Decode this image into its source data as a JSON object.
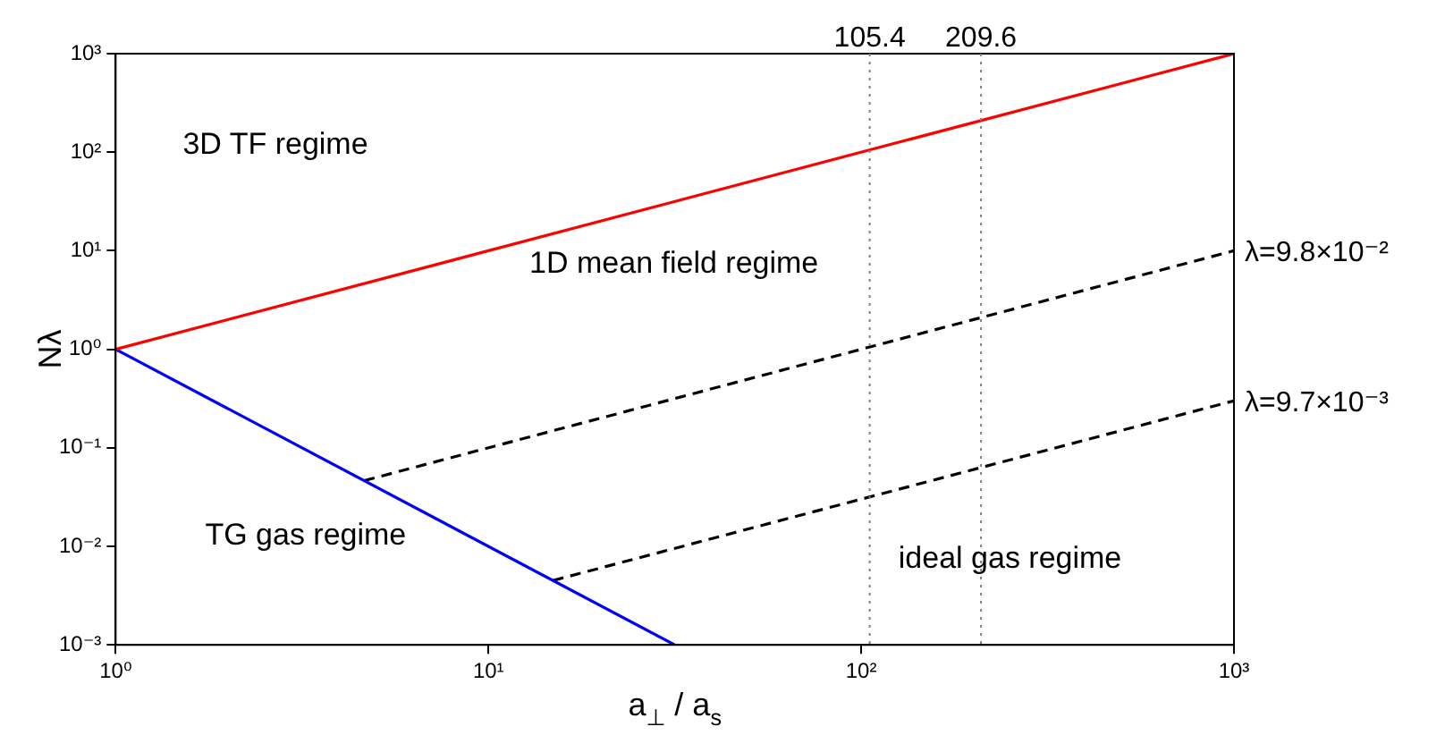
{
  "chart_data": {
    "type": "line",
    "xlabel": "a$_{⊥}$ / a$_{s}$",
    "ylabel": "Nλ",
    "log": "xy",
    "xlim": [
      1,
      1000
    ],
    "ylim": [
      0.001,
      1000
    ],
    "xticks": [
      {
        "value": 1,
        "label": "10⁰"
      },
      {
        "value": 10,
        "label": "10¹"
      },
      {
        "value": 100,
        "label": "10²"
      },
      {
        "value": 1000,
        "label": "10³"
      }
    ],
    "yticks": [
      {
        "value": 0.001,
        "label": "10⁻³"
      },
      {
        "value": 0.01,
        "label": "10⁻²"
      },
      {
        "value": 0.1,
        "label": "10⁻¹"
      },
      {
        "value": 1,
        "label": "10⁰"
      },
      {
        "value": 10,
        "label": "10¹"
      },
      {
        "value": 100,
        "label": "10²"
      },
      {
        "value": 1000,
        "label": "10³"
      }
    ],
    "grid": false,
    "legend": false,
    "marker": "none",
    "series": [
      {
        "color": "#ff0000",
        "x": [
          1,
          1000
        ],
        "values": [
          1,
          1000
        ],
        "line_style": "solid"
      },
      {
        "color": "#0000ff",
        "x": [
          1,
          31.6
        ],
        "values": [
          1,
          0.001
        ],
        "line_style": "solid"
      },
      {
        "name": "λ=9.8×10⁻²",
        "color": "#000000",
        "x": [
          4.64,
          1000
        ],
        "values": [
          0.0464,
          10
        ],
        "line_style": "dashed"
      },
      {
        "name": "λ=9.7×10⁻³",
        "color": "#000000",
        "x": [
          14.9,
          1000
        ],
        "values": [
          0.0045,
          0.3
        ],
        "line_style": "dashed"
      }
    ],
    "ref_lines": [
      {
        "axis": "x",
        "value": 105.4,
        "label": "105.4",
        "color": "#808080",
        "line_style": "dotted"
      },
      {
        "axis": "x",
        "value": 209.6,
        "label": "209.6",
        "color": "#808080",
        "line_style": "dotted"
      }
    ],
    "annotations": [
      "3D TF regime",
      "1D mean field regime",
      "TG gas regime",
      "ideal gas regime"
    ]
  }
}
